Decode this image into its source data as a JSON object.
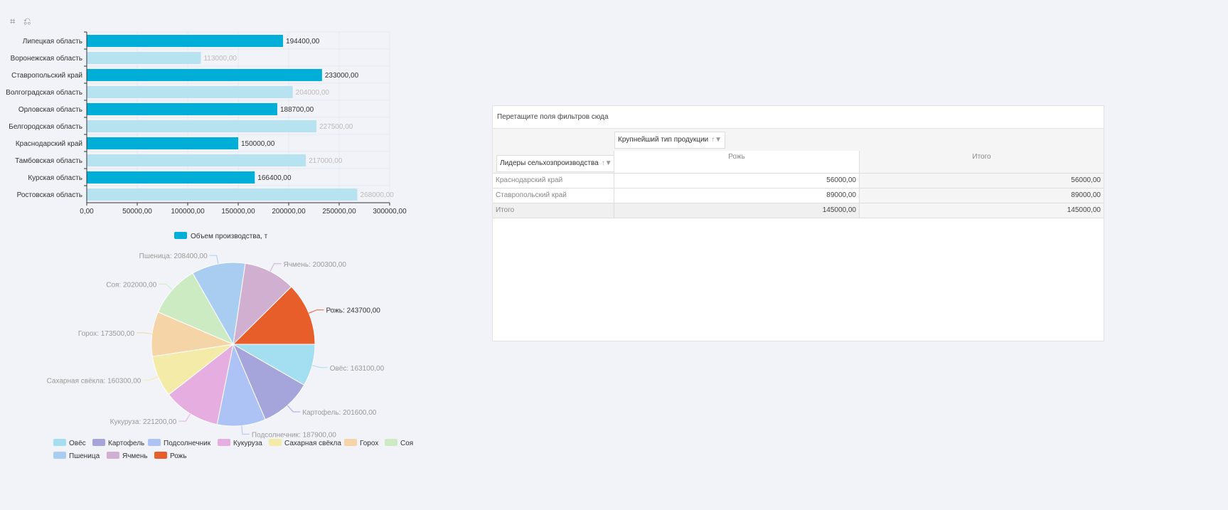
{
  "toolbar": {
    "icons": [
      "crop-icon",
      "undo-icon"
    ]
  },
  "chart_data": [
    {
      "type": "bar",
      "orientation": "horizontal",
      "categories": [
        "Липецкая область",
        "Воронежская область",
        "Ставропольский край",
        "Волгоградская область",
        "Орловская область",
        "Белгородская область",
        "Краснодарский край",
        "Тамбовская область",
        "Курская область",
        "Ростовская область"
      ],
      "values": [
        194400,
        113000,
        233000,
        204000,
        188700,
        227500,
        150000,
        217000,
        166400,
        268000
      ],
      "value_labels": [
        "194400,00",
        "113000,00",
        "233000,00",
        "204000,00",
        "188700,00",
        "227500,00",
        "150000,00",
        "217000,00",
        "166400,00",
        "268000,00"
      ],
      "highlighted": [
        true,
        false,
        true,
        false,
        true,
        false,
        true,
        false,
        true,
        false
      ],
      "xlim": [
        0,
        300000
      ],
      "xticks": [
        "0,00",
        "50000,00",
        "100000,00",
        "150000,00",
        "200000,00",
        "250000,00",
        "300000,00"
      ],
      "grid": true,
      "legend": {
        "position": "bottom",
        "entries": [
          "Объем производства, т"
        ]
      },
      "colors": {
        "highlight": "#00afd7",
        "dim": "#b7e3f1"
      }
    },
    {
      "type": "pie",
      "slices": [
        {
          "name": "Овёс",
          "value": 163100,
          "label": "Овёс: 163100,00",
          "color": "#a3dff0"
        },
        {
          "name": "Картофель",
          "value": 201600,
          "label": "Картофель: 201600,00",
          "color": "#a5a5dc"
        },
        {
          "name": "Подсолнечник",
          "value": 187900,
          "label": "Подсолнечник: 187900,00",
          "color": "#adc3f5"
        },
        {
          "name": "Кукуруза",
          "value": 221200,
          "label": "Кукуруза: 221200,00",
          "color": "#e6aee0"
        },
        {
          "name": "Сахарная свёкла",
          "value": 160300,
          "label": "Сахарная свёкла: 160300,00",
          "color": "#f5eba8"
        },
        {
          "name": "Горох",
          "value": 173500,
          "label": "Горох: 173500,00",
          "color": "#f5d5a8"
        },
        {
          "name": "Соя",
          "value": 202000,
          "label": "Соя: 202000,00",
          "color": "#cdebc3"
        },
        {
          "name": "Пшеница",
          "value": 208400,
          "label": "Пшеница: 208400,00",
          "color": "#a8cdf0"
        },
        {
          "name": "Ячмень",
          "value": 200300,
          "label": "Ячмень: 200300,00",
          "color": "#d0afd0"
        },
        {
          "name": "Рожь",
          "value": 243700,
          "label": "Рожь: 243700,00",
          "color": "#e85e2a"
        }
      ],
      "highlighted": "Рожь",
      "legend": {
        "position": "bottom"
      }
    }
  ],
  "pivot": {
    "filter_area": "Перетащите поля фильтров сюда",
    "column_field": "Крупнейший тип продукции",
    "row_field": "Лидеры сельхозпроизводства",
    "columns": [
      "Рожь",
      "Итого"
    ],
    "rows": [
      {
        "label": "Краснодарский край",
        "values": [
          "56000,00",
          "56000,00"
        ]
      },
      {
        "label": "Ставропольский край",
        "values": [
          "89000,00",
          "89000,00"
        ]
      },
      {
        "label": "Итого",
        "values": [
          "145000,00",
          "145000,00"
        ]
      }
    ]
  }
}
